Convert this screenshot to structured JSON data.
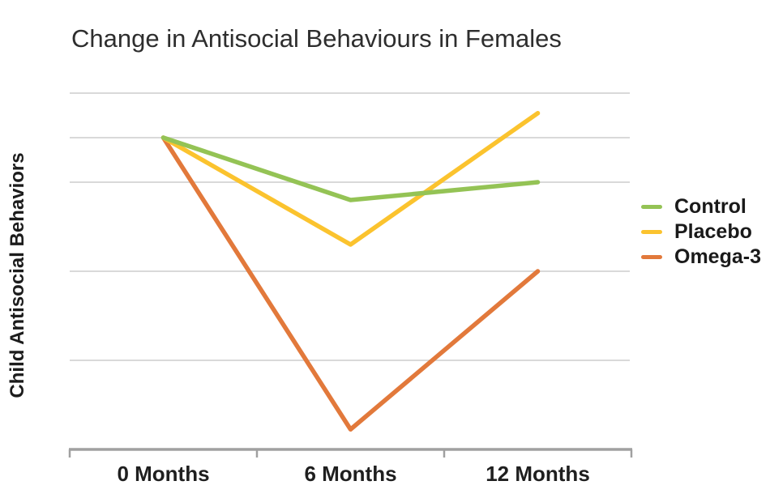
{
  "chart_data": {
    "type": "line",
    "title": "Change in Antisocial Behaviours in Females",
    "ylabel": "Child Antisocial Behaviors",
    "xlabel": "",
    "categories": [
      "0 Months",
      "6 Months",
      "12 Months"
    ],
    "series": [
      {
        "name": "Control",
        "color": "#94c355",
        "values": [
          7.0,
          5.6,
          6.0
        ]
      },
      {
        "name": "Placebo",
        "color": "#fbc32e",
        "values": [
          7.0,
          4.6,
          7.55
        ]
      },
      {
        "name": "Omega-3",
        "color": "#e2793b",
        "values": [
          7.0,
          0.45,
          4.0
        ]
      }
    ],
    "y_axis": {
      "min": 0,
      "max": 8.4,
      "tick_labels": "none visible (unlabeled scale)",
      "gridline_values": [
        8,
        7,
        6,
        4,
        2
      ]
    },
    "x_axis": {
      "tick_marks": "at category boundaries",
      "line_visible": true
    },
    "legend": {
      "position": "right"
    },
    "grid": "horizontal",
    "colors": {
      "gridline": "#d9d9d9",
      "axis": "#a0a0a0",
      "title_text": "#2e2e2e",
      "label_text": "#1c1c1c"
    }
  }
}
